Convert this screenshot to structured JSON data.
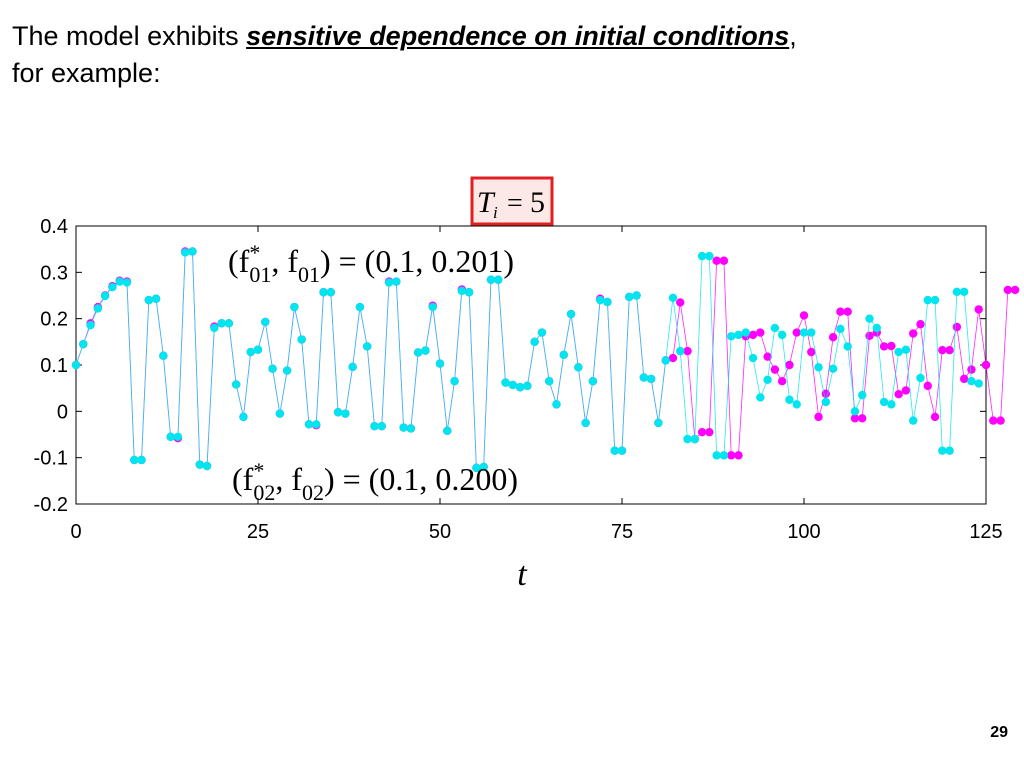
{
  "slide": {
    "heading_pre": "The model exhibits ",
    "heading_emph": "sensitive dependence on initial conditions",
    "heading_post": ",",
    "heading_line2": "for example:",
    "page_number": "29"
  },
  "chart_data": {
    "type": "line",
    "title": "",
    "xlabel": "t",
    "ylabel": "",
    "xlim": [
      0,
      125
    ],
    "ylim": [
      -0.2,
      0.4
    ],
    "xticks": [
      0,
      25,
      50,
      75,
      100,
      125
    ],
    "xtick_labels": [
      "0",
      "25",
      "50",
      "75",
      "100",
      "125"
    ],
    "yticks": [
      -0.2,
      -0.1,
      0,
      0.1,
      0.2,
      0.3,
      0.4
    ],
    "ytick_labels": [
      "-0.2",
      "-0.1",
      "0",
      "0.1",
      "0.2",
      "0.3",
      "0.4"
    ],
    "grid": false,
    "legend": "none",
    "param_box": {
      "T_symbol": "T",
      "subscript": "i",
      "equals": "=",
      "value": "5",
      "border_color": "#e02020",
      "fill_color": "#fde8e8"
    },
    "annotation_upper": {
      "open": "(f",
      "star": "*",
      "sub1": "01",
      "comma": ", f",
      "sub2": "01",
      "value": ") = (0.1, 0.201)"
    },
    "annotation_lower": {
      "open": "(f",
      "star": "*",
      "sub1": "02",
      "comma": ", f",
      "sub2": "02",
      "value": ") = (0.1, 0.200)"
    },
    "series": [
      {
        "color": "#ff00ff",
        "values": [
          0.1,
          0.145,
          0.19,
          0.225,
          0.25,
          0.27,
          0.282,
          0.28,
          -0.105,
          -0.105,
          0.24,
          0.243,
          0.12,
          -0.055,
          -0.058,
          0.345,
          0.345,
          -0.115,
          -0.118,
          0.183,
          0.19,
          0.19,
          0.058,
          -0.012,
          0.128,
          0.133,
          0.193,
          0.092,
          -0.005,
          0.088,
          0.225,
          0.155,
          -0.028,
          -0.03,
          0.257,
          0.257,
          -0.002,
          -0.005,
          0.096,
          0.225,
          0.14,
          -0.032,
          -0.032,
          0.28,
          0.28,
          -0.035,
          -0.037,
          0.127,
          0.131,
          0.228,
          0.103,
          -0.042,
          0.065,
          0.263,
          0.257,
          -0.122,
          -0.12,
          0.284,
          0.284,
          0.062,
          0.057,
          0.052,
          0.055,
          0.15,
          0.17,
          0.065,
          0.015,
          0.122,
          0.21,
          0.095,
          -0.025,
          0.065,
          0.243,
          0.236,
          -0.085,
          -0.085,
          0.247,
          0.25,
          0.073,
          0.07,
          -0.025,
          0.11,
          0.115,
          0.235,
          0.13,
          -0.06,
          -0.045,
          -0.045,
          0.325,
          0.325,
          -0.095,
          -0.095,
          0.162,
          0.165,
          0.17,
          0.118,
          0.09,
          0.065,
          0.1,
          0.17,
          0.207,
          0.128,
          -0.012,
          0.038,
          0.16,
          0.215,
          0.215,
          -0.015,
          -0.015,
          0.163,
          0.17,
          0.14,
          0.141,
          0.037,
          0.045,
          0.168,
          0.188,
          0.055,
          -0.012,
          0.132,
          0.132,
          0.182,
          0.07,
          0.09,
          0.22,
          0.1,
          -0.02,
          -0.02,
          0.262,
          0.262
        ]
      },
      {
        "color": "#00e5ee",
        "values": [
          0.1,
          0.145,
          0.186,
          0.222,
          0.249,
          0.268,
          0.28,
          0.278,
          -0.105,
          -0.105,
          0.24,
          0.243,
          0.12,
          -0.055,
          -0.055,
          0.343,
          0.345,
          -0.115,
          -0.118,
          0.18,
          0.19,
          0.19,
          0.058,
          -0.012,
          0.128,
          0.133,
          0.193,
          0.092,
          -0.005,
          0.088,
          0.225,
          0.155,
          -0.028,
          -0.028,
          0.257,
          0.257,
          -0.002,
          -0.005,
          0.096,
          0.225,
          0.14,
          -0.032,
          -0.032,
          0.278,
          0.28,
          -0.035,
          -0.037,
          0.127,
          0.131,
          0.225,
          0.103,
          -0.042,
          0.065,
          0.26,
          0.257,
          -0.122,
          -0.12,
          0.284,
          0.284,
          0.062,
          0.057,
          0.052,
          0.055,
          0.15,
          0.17,
          0.065,
          0.015,
          0.122,
          0.21,
          0.095,
          -0.025,
          0.065,
          0.24,
          0.236,
          -0.085,
          -0.085,
          0.247,
          0.25,
          0.073,
          0.07,
          -0.025,
          0.11,
          0.245,
          0.13,
          -0.06,
          -0.06,
          0.335,
          0.335,
          -0.095,
          -0.095,
          0.162,
          0.165,
          0.17,
          0.115,
          0.03,
          0.068,
          0.18,
          0.165,
          0.025,
          0.015,
          0.17,
          0.17,
          0.095,
          0.02,
          0.092,
          0.178,
          0.14,
          0.0,
          0.035,
          0.2,
          0.18,
          0.02,
          0.015,
          0.128,
          0.133,
          -0.02,
          0.072,
          0.24,
          0.24,
          -0.085,
          -0.085,
          0.258,
          0.258,
          0.065,
          0.06
        ]
      }
    ]
  }
}
